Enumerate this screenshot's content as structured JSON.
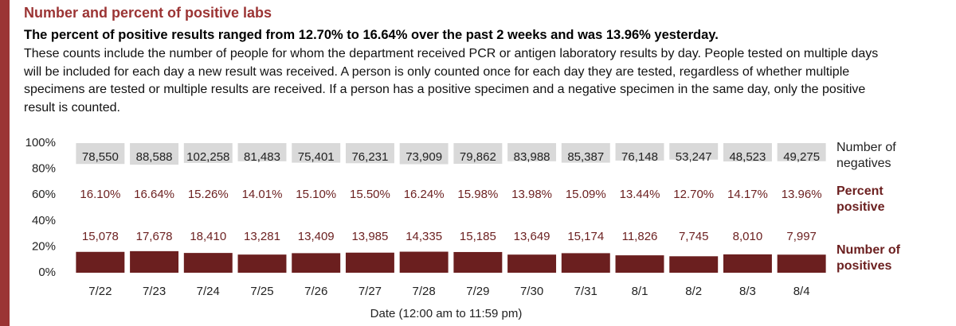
{
  "chart_data": {
    "type": "bar",
    "title": "Number and percent of positive labs",
    "subtitle": "The percent of positive results ranged from 12.70% to 16.64% over the past 2 weeks and was 13.96% yesterday.",
    "description": "These counts include the number of people for whom the department received PCR or antigen laboratory results by day. People tested on multiple days will be included for each day a new result was received. A person is only counted once for each day they are tested, regardless of whether multiple specimens are tested or multiple results are received. If a person has a positive specimen and a negative specimen in the same day, only the positive result is counted.",
    "xlabel": "Date (12:00 am to 11:59 pm)",
    "categories": [
      "7/22",
      "7/23",
      "7/24",
      "7/25",
      "7/26",
      "7/27",
      "7/28",
      "7/29",
      "7/30",
      "7/31",
      "8/1",
      "8/2",
      "8/3",
      "8/4"
    ],
    "ylim": [
      0,
      100
    ],
    "yticks": [
      {
        "value": 0,
        "label": "0%"
      },
      {
        "value": 20,
        "label": "20%"
      },
      {
        "value": 40,
        "label": "40%"
      },
      {
        "value": 60,
        "label": "60%"
      },
      {
        "value": 80,
        "label": "80%"
      },
      {
        "value": 100,
        "label": "100%"
      }
    ],
    "series": [
      {
        "name": "Number of negatives",
        "color": "#d9d9d9",
        "values": [
          78550,
          88588,
          102258,
          81483,
          75401,
          76231,
          73909,
          79862,
          83988,
          85387,
          76148,
          53247,
          48523,
          49275
        ],
        "value_labels": [
          "78,550",
          "88,588",
          "102,258",
          "81,483",
          "75,401",
          "76,231",
          "73,909",
          "79,862",
          "83,988",
          "85,387",
          "76,148",
          "53,247",
          "48,523",
          "49,275"
        ]
      },
      {
        "name": "Percent positive",
        "color": "#6b1f1f",
        "values": [
          16.1,
          16.64,
          15.26,
          14.01,
          15.1,
          15.5,
          16.24,
          15.98,
          13.98,
          15.09,
          13.44,
          12.7,
          14.17,
          13.96
        ],
        "value_labels": [
          "16.10%",
          "16.64%",
          "15.26%",
          "14.01%",
          "15.10%",
          "15.50%",
          "16.24%",
          "15.98%",
          "13.98%",
          "15.09%",
          "13.44%",
          "12.70%",
          "14.17%",
          "13.96%"
        ]
      },
      {
        "name": "Number of positives",
        "color": "#6b1f1f",
        "values": [
          15078,
          17678,
          18410,
          13281,
          13409,
          13985,
          14335,
          15185,
          13649,
          15174,
          11826,
          7745,
          8010,
          7997
        ],
        "value_labels": [
          "15,078",
          "17,678",
          "18,410",
          "13,281",
          "13,409",
          "13,985",
          "14,335",
          "15,185",
          "13,649",
          "15,174",
          "11,826",
          "7,745",
          "8,010",
          "7,997"
        ]
      }
    ]
  }
}
